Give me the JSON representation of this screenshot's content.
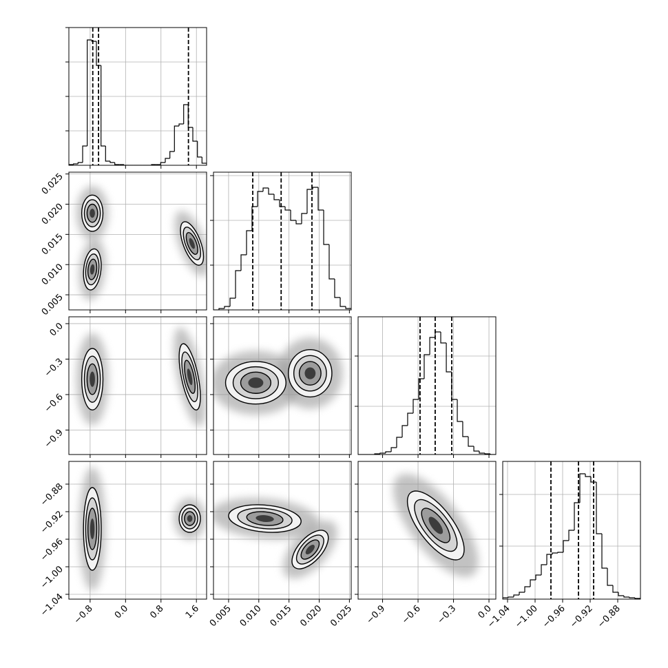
{
  "chart_data": {
    "type": "corner",
    "params": [
      {
        "lim": [
          -1.28,
          1.83
        ],
        "ticks": [
          {
            "value": -0.8,
            "label": "−0.8"
          },
          {
            "value": 0,
            "label": "0.0"
          },
          0.8,
          1.6
        ]
      },
      {
        "lim": [
          0.0025,
          0.0253
        ],
        "ticks": [
          0.005,
          {
            "value": 0.01,
            "label": "0.010"
          },
          0.015,
          {
            "value": 0.02,
            "label": "0.020"
          },
          0.025
        ]
      },
      {
        "lim": [
          -1.107,
          0.058
        ],
        "ticks": [
          {
            "value": -0.9,
            "label": "−0.9"
          },
          {
            "value": -0.6,
            "label": "−0.6"
          },
          {
            "value": -0.3,
            "label": "−0.3"
          },
          {
            "value": 0,
            "label": "0.0"
          }
        ]
      },
      {
        "lim": [
          -1.047,
          -0.847
        ],
        "ticks": [
          {
            "value": -1.04,
            "label": "−1.04"
          },
          {
            "value": -1,
            "label": "−1.00"
          },
          {
            "value": -0.96,
            "label": "−0.96"
          },
          {
            "value": -0.92,
            "label": "−0.92"
          },
          {
            "value": -0.88,
            "label": "−0.88"
          }
        ]
      }
    ],
    "histograms": [
      {
        "bins": [
          -1.28,
          -1.176,
          -1.073,
          -0.969,
          -0.865,
          -0.762,
          -0.658,
          -0.554,
          -0.451,
          -0.347,
          -0.243,
          -0.14,
          -0.036,
          0.068,
          0.171,
          0.275,
          0.379,
          0.482,
          0.586,
          0.69,
          0.793,
          0.897,
          1.001,
          1.104,
          1.208,
          1.312,
          1.415,
          1.519,
          1.623,
          1.726,
          1.83
        ],
        "counts": [
          1,
          2,
          4,
          28,
          182,
          180,
          145,
          28,
          6,
          4,
          1,
          1,
          0,
          0,
          0,
          0,
          0,
          0,
          1,
          1,
          4,
          10,
          20,
          57,
          60,
          88,
          55,
          35,
          12,
          3
        ],
        "ylim": [
          0,
          200
        ],
        "yticks": [
          50,
          100,
          150,
          200
        ],
        "quantiles": [
          -0.74,
          -0.61,
          1.42
        ]
      },
      {
        "bins": [
          0.0025,
          0.00341,
          0.00432,
          0.00524,
          0.00615,
          0.00706,
          0.00797,
          0.00888,
          0.0098,
          0.01071,
          0.01162,
          0.01253,
          0.01344,
          0.01436,
          0.01527,
          0.01618,
          0.01709,
          0.018,
          0.01892,
          0.01983,
          0.02074,
          0.02165,
          0.02256,
          0.02348,
          0.02439,
          0.0253
        ],
        "counts": [
          0,
          2,
          5,
          17,
          57,
          80,
          115,
          150,
          172,
          177,
          168,
          160,
          150,
          145,
          130,
          125,
          140,
          175,
          178,
          145,
          95,
          45,
          18,
          5,
          2
        ],
        "ylim": [
          0,
          200
        ],
        "yticks": [
          65,
          130,
          195
        ],
        "quantiles": [
          0.009,
          0.0137,
          0.0188
        ]
      },
      {
        "bins": [
          -1.107,
          -1.06,
          -1.014,
          -0.967,
          -0.921,
          -0.874,
          -0.827,
          -0.781,
          -0.734,
          -0.688,
          -0.641,
          -0.594,
          -0.548,
          -0.501,
          -0.455,
          -0.408,
          -0.361,
          -0.315,
          -0.268,
          -0.222,
          -0.175,
          -0.128,
          -0.082,
          -0.035,
          0.011,
          0.058
        ],
        "counts": [
          0,
          0,
          0,
          1,
          2,
          4,
          10,
          25,
          42,
          60,
          80,
          110,
          145,
          170,
          178,
          162,
          120,
          80,
          48,
          26,
          12,
          5,
          2,
          1,
          0
        ],
        "ylim": [
          0,
          200
        ],
        "yticks": [
          70,
          143
        ],
        "quantiles": [
          -0.583,
          -0.455,
          -0.315
        ]
      },
      {
        "bins": [
          -1.047,
          -1.039,
          -1.031,
          -1.023,
          -1.015,
          -1.007,
          -0.999,
          -0.991,
          -0.983,
          -0.975,
          -0.967,
          -0.959,
          -0.951,
          -0.943,
          -0.935,
          -0.927,
          -0.919,
          -0.911,
          -0.903,
          -0.895,
          -0.887,
          -0.879,
          -0.871,
          -0.863,
          -0.855,
          -0.847
        ],
        "counts": [
          2,
          3,
          6,
          10,
          18,
          28,
          35,
          50,
          65,
          67,
          68,
          85,
          100,
          140,
          182,
          178,
          170,
          95,
          45,
          20,
          10,
          5,
          3,
          2,
          1
        ],
        "ylim": [
          0,
          200
        ],
        "yticks": [
          77,
          152
        ],
        "quantiles": [
          -0.977,
          -0.937,
          -0.915
        ]
      }
    ],
    "pairs": [
      [
        [
          {
            "x": -0.75,
            "y": 0.0185,
            "sx": 0.12,
            "sy": 0.0015,
            "rho": 0
          },
          {
            "x": -0.75,
            "y": 0.0092,
            "sx": 0.1,
            "sy": 0.0017,
            "rho": 0.2
          },
          {
            "x": 1.5,
            "y": 0.0135,
            "sx": 0.13,
            "sy": 0.0018,
            "rho": -0.6
          }
        ]
      ],
      [
        [
          {
            "x": -0.75,
            "y": -0.47,
            "sx": 0.12,
            "sy": 0.13,
            "rho": 0
          },
          {
            "x": 1.45,
            "y": -0.45,
            "sx": 0.12,
            "sy": 0.14,
            "rho": -0.6
          }
        ],
        [
          {
            "x": 0.0095,
            "y": -0.5,
            "sx": 0.0025,
            "sy": 0.09,
            "rho": 0
          },
          {
            "x": 0.0185,
            "y": -0.42,
            "sx": 0.0018,
            "sy": 0.1,
            "rho": 0
          }
        ]
      ],
      [
        [
          {
            "x": -0.75,
            "y": -0.945,
            "sx": 0.1,
            "sy": 0.03,
            "rho": 0
          },
          {
            "x": 1.45,
            "y": -0.93,
            "sx": 0.12,
            "sy": 0.01,
            "rho": 0
          }
        ],
        [
          {
            "x": 0.011,
            "y": -0.93,
            "sx": 0.003,
            "sy": 0.01,
            "rho": -0.2
          },
          {
            "x": 0.0185,
            "y": -0.975,
            "sx": 0.0015,
            "sy": 0.014,
            "rho": 0.6
          }
        ],
        [
          {
            "x": -0.45,
            "y": -0.94,
            "sx": 0.12,
            "sy": 0.025,
            "rho": -0.7
          }
        ]
      ]
    ]
  }
}
